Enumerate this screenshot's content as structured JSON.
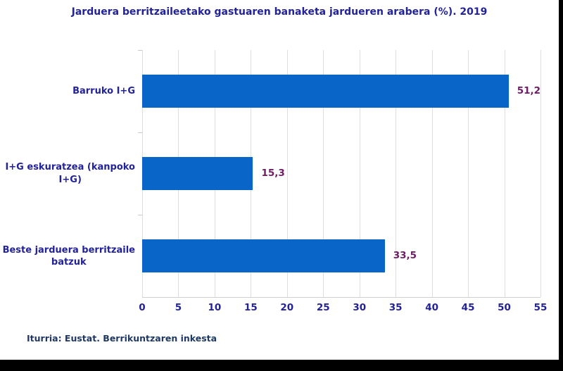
{
  "title": "Jarduera berritzaileetako gastuaren banaketa jardueren arabera (%). 2019",
  "source_note": "Iturria: Eustat. Berrikuntzaren inkesta",
  "chart_data": {
    "type": "bar",
    "orientation": "horizontal",
    "title": "Jarduera berritzaileetako gastuaren banaketa jardueren arabera (%). 2019",
    "categories": [
      "Barruko I+G",
      "I+G eskuratzea (kanpoko I+G)",
      "Beste jarduera berritzaile batzuk"
    ],
    "category_lines": [
      [
        "Barruko I+G"
      ],
      [
        "I+G eskuratzea (kanpoko",
        "I+G)"
      ],
      [
        "Beste jarduera berritzaile",
        "batzuk"
      ]
    ],
    "values": [
      51.2,
      15.3,
      33.5
    ],
    "value_labels": [
      "51,2",
      "15,3",
      "33,5"
    ],
    "xlabel": "",
    "ylabel": "",
    "xlim": [
      0,
      55
    ],
    "xticks": [
      0,
      5,
      10,
      15,
      20,
      25,
      30,
      35,
      40,
      45,
      50,
      55
    ],
    "grid": true,
    "legend": false,
    "colors": {
      "bar": "#0a65c8",
      "title": "#22229a",
      "category_label": "#22229a",
      "value_label": "#6e1c64",
      "tick_label": "#22229a",
      "source": "#1f3864",
      "gridline": "#dedede"
    }
  }
}
